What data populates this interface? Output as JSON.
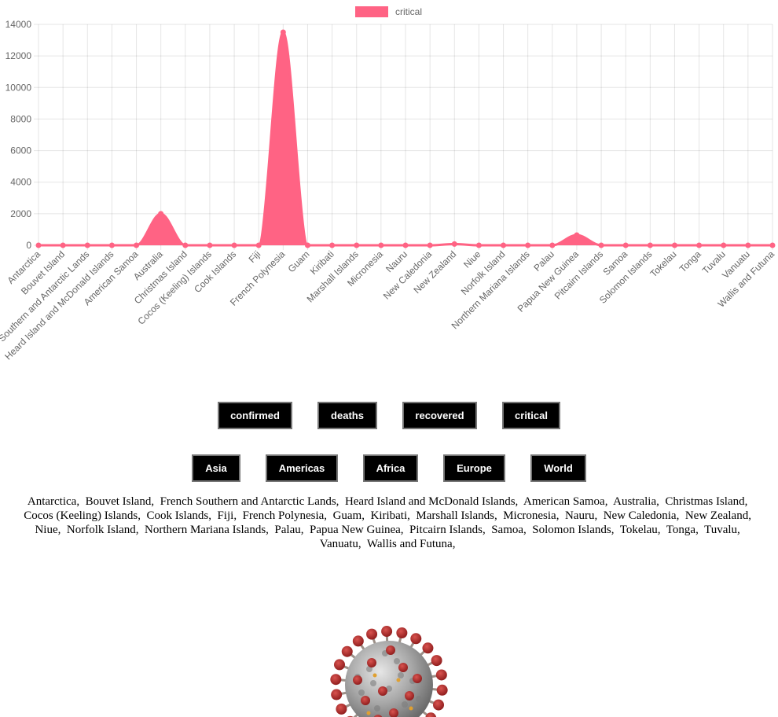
{
  "chart_data": {
    "type": "line",
    "fill": true,
    "title": "",
    "xlabel": "",
    "ylabel": "",
    "ylim": [
      0,
      14000
    ],
    "yticks": [
      0,
      2000,
      4000,
      6000,
      8000,
      10000,
      12000,
      14000
    ],
    "grid": true,
    "legend_position": "top-center",
    "categories": [
      "Antarctica",
      "Bouvet Island",
      "French Southern and Antarctic Lands",
      "Heard Island and McDonald Islands",
      "American Samoa",
      "Australia",
      "Christmas Island",
      "Cocos (Keeling) Islands",
      "Cook Islands",
      "Fiji",
      "French Polynesia",
      "Guam",
      "Kiribati",
      "Marshall Islands",
      "Micronesia",
      "Nauru",
      "New Caledonia",
      "New Zealand",
      "Niue",
      "Norfolk Island",
      "Northern Mariana Islands",
      "Palau",
      "Papua New Guinea",
      "Pitcairn Islands",
      "Samoa",
      "Solomon Islands",
      "Tokelau",
      "Tonga",
      "Tuvalu",
      "Vanuatu",
      "Wallis and Futuna"
    ],
    "series": [
      {
        "name": "critical",
        "color": "#ff6384",
        "values": [
          0,
          0,
          0,
          0,
          0,
          2000,
          0,
          0,
          0,
          0,
          13500,
          0,
          0,
          0,
          0,
          0,
          0,
          80,
          0,
          0,
          0,
          0,
          650,
          0,
          0,
          0,
          0,
          0,
          0,
          0,
          0
        ]
      }
    ]
  },
  "metric_buttons": [
    {
      "label": "confirmed"
    },
    {
      "label": "deaths"
    },
    {
      "label": "recovered"
    },
    {
      "label": "critical"
    }
  ],
  "region_buttons": [
    {
      "label": "Asia"
    },
    {
      "label": "Americas"
    },
    {
      "label": "Africa"
    },
    {
      "label": "Europe"
    },
    {
      "label": "World"
    }
  ],
  "country_list": [
    "Antarctica,",
    "Bouvet Island,",
    "French Southern and Antarctic Lands,",
    "Heard Island and McDonald Islands,",
    "American Samoa,",
    "Australia,",
    "Christmas Island,",
    "Cocos (Keeling) Islands,",
    "Cook Islands,",
    "Fiji,",
    "French Polynesia,",
    "Guam,",
    "Kiribati,",
    "Marshall Islands,",
    "Micronesia,",
    "Nauru,",
    "New Caledonia,",
    "New Zealand,",
    "Niue,",
    "Norfolk Island,",
    "Northern Mariana Islands,",
    "Palau,",
    "Papua New Guinea,",
    "Pitcairn Islands,",
    "Samoa,",
    "Solomon Islands,",
    "Tokelau,",
    "Tonga,",
    "Tuvalu,",
    "Vanuatu,",
    "Wallis and Futuna,"
  ],
  "virus_image": {
    "icon": "coronavirus-icon"
  }
}
